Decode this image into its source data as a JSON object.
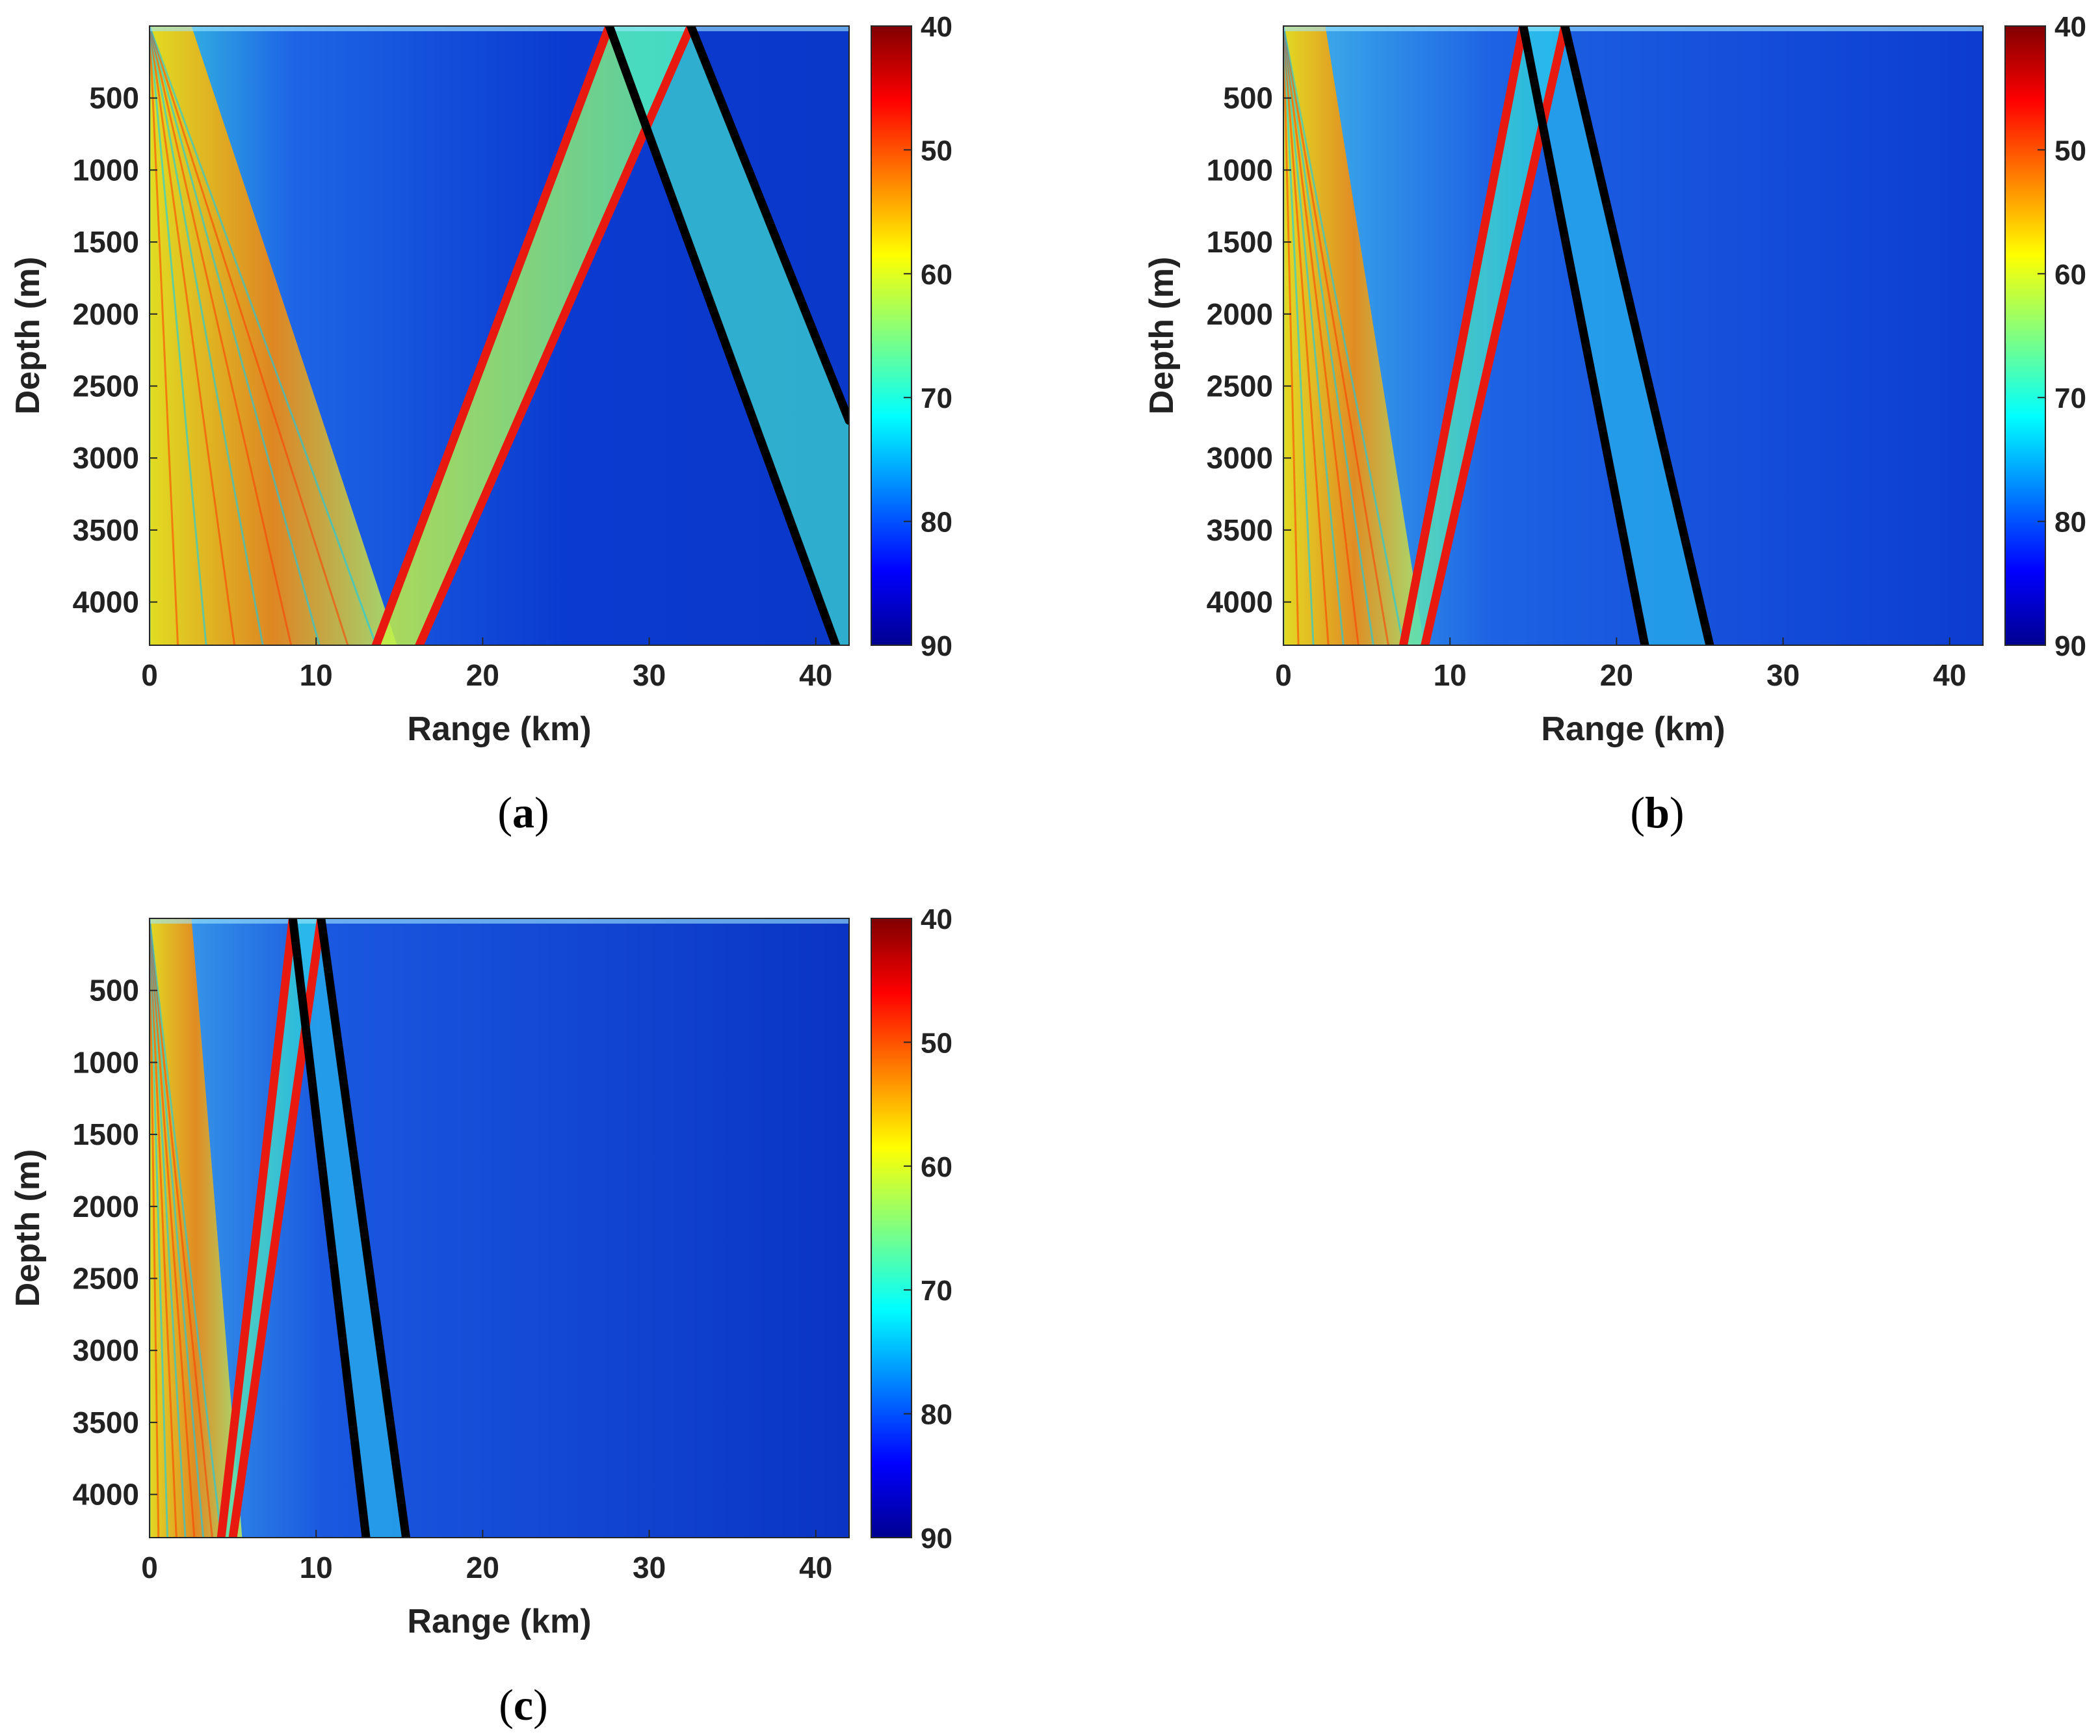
{
  "chart_data": [
    {
      "type": "heatmap",
      "panel": "a",
      "caption_open": "(",
      "caption_letter": "a",
      "caption_close": ")",
      "xlabel": "Range (km)",
      "ylabel": "Depth (m)",
      "xlim": [
        0,
        42
      ],
      "ylim": [
        0,
        4300
      ],
      "xticks": [
        "0",
        "10",
        "20",
        "30",
        "40"
      ],
      "yticks": [
        "500",
        "1000",
        "1500",
        "2000",
        "2500",
        "3000",
        "3500",
        "4000"
      ],
      "colorbar": {
        "ticks": [
          "40",
          "50",
          "60",
          "70",
          "80",
          "90"
        ],
        "range": [
          40,
          90
        ]
      },
      "series": [
        {
          "name": "red-ray-1",
          "color": "#e8190e",
          "x": [
            13.6,
            27.6
          ],
          "y": [
            4300,
            0
          ]
        },
        {
          "name": "red-ray-2",
          "color": "#e8190e",
          "x": [
            16.2,
            32.5
          ],
          "y": [
            4300,
            0
          ]
        },
        {
          "name": "black-ray-1",
          "color": "#000000",
          "x": [
            27.6,
            41.2
          ],
          "y": [
            0,
            4300
          ]
        },
        {
          "name": "black-ray-2",
          "color": "#000000",
          "x": [
            32.5,
            42.0
          ],
          "y": [
            0,
            2740
          ]
        }
      ]
    },
    {
      "type": "heatmap",
      "panel": "b",
      "caption_open": "(",
      "caption_letter": "b",
      "caption_close": ")",
      "xlabel": "Range (km)",
      "ylabel": "Depth (m)",
      "xlim": [
        0,
        42
      ],
      "ylim": [
        0,
        4300
      ],
      "xticks": [
        "0",
        "10",
        "20",
        "30",
        "40"
      ],
      "yticks": [
        "500",
        "1000",
        "1500",
        "2000",
        "2500",
        "3000",
        "3500",
        "4000"
      ],
      "colorbar": {
        "ticks": [
          "40",
          "50",
          "60",
          "70",
          "80",
          "90"
        ],
        "range": [
          40,
          90
        ]
      },
      "series": [
        {
          "name": "red-ray-1",
          "color": "#e8190e",
          "x": [
            7.2,
            14.4
          ],
          "y": [
            4300,
            0
          ]
        },
        {
          "name": "red-ray-2",
          "color": "#e8190e",
          "x": [
            8.5,
            16.9
          ],
          "y": [
            4300,
            0
          ]
        },
        {
          "name": "black-ray-1",
          "color": "#000000",
          "x": [
            14.4,
            21.7
          ],
          "y": [
            0,
            4300
          ]
        },
        {
          "name": "black-ray-2",
          "color": "#000000",
          "x": [
            16.9,
            25.6
          ],
          "y": [
            0,
            4300
          ]
        }
      ]
    },
    {
      "type": "heatmap",
      "panel": "c",
      "caption_open": "(",
      "caption_letter": "c",
      "caption_close": ")",
      "xlabel": "Range (km)",
      "ylabel": "Depth (m)",
      "xlim": [
        0,
        42
      ],
      "ylim": [
        0,
        4300
      ],
      "xticks": [
        "0",
        "10",
        "20",
        "30",
        "40"
      ],
      "yticks": [
        "500",
        "1000",
        "1500",
        "2000",
        "2500",
        "3000",
        "3500",
        "4000"
      ],
      "colorbar": {
        "ticks": [
          "40",
          "50",
          "60",
          "70",
          "80",
          "90"
        ],
        "range": [
          40,
          90
        ]
      },
      "series": [
        {
          "name": "red-ray-1",
          "color": "#e8190e",
          "x": [
            4.3,
            8.6
          ],
          "y": [
            4300,
            0
          ]
        },
        {
          "name": "red-ray-2",
          "color": "#e8190e",
          "x": [
            5.0,
            10.3
          ],
          "y": [
            4300,
            0
          ]
        },
        {
          "name": "black-ray-1",
          "color": "#000000",
          "x": [
            8.6,
            13.0
          ],
          "y": [
            0,
            4300
          ]
        },
        {
          "name": "black-ray-2",
          "color": "#000000",
          "x": [
            10.3,
            15.4
          ],
          "y": [
            0,
            4300
          ]
        }
      ]
    }
  ]
}
